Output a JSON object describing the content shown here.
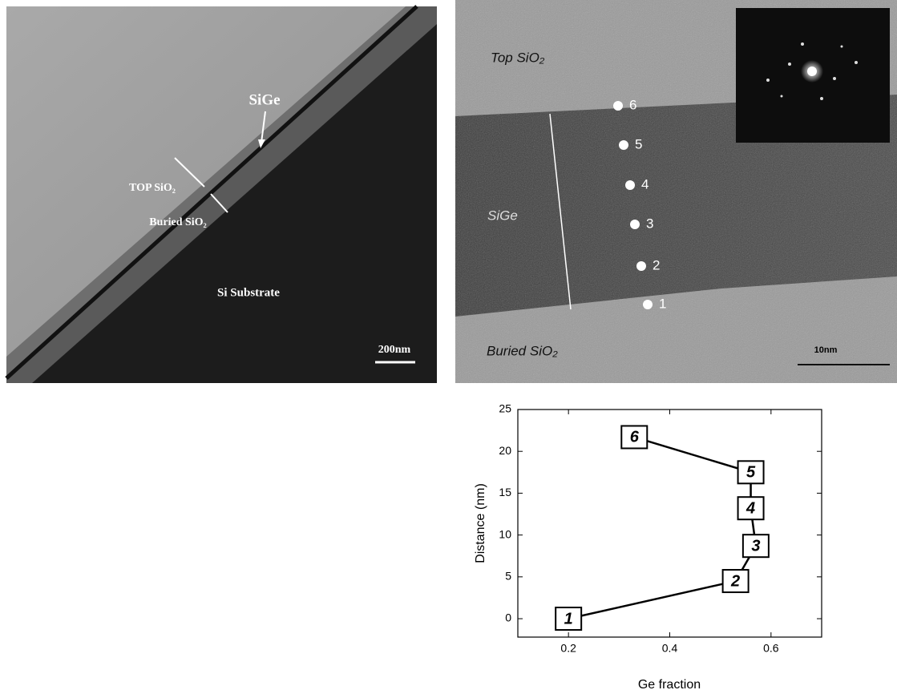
{
  "left_image": {
    "labels": {
      "sige": "SiGe",
      "top_sio2": "TOP SiO₂",
      "buried_sio2": "Buried SiO₂",
      "substrate": "Si Substrate",
      "scale": "200nm"
    }
  },
  "right_image": {
    "labels": {
      "top_sio2": "Top SiO₂",
      "sige": "SiGe",
      "buried_sio2": "Buried SiO₂",
      "scale": "10nm"
    },
    "point_labels": [
      "1",
      "2",
      "3",
      "4",
      "5",
      "6"
    ]
  },
  "chart_data": {
    "type": "line",
    "x_label": "Ge fraction",
    "y_label": "Distance (nm)",
    "x": [
      0.2,
      0.53,
      0.57,
      0.56,
      0.56,
      0.33
    ],
    "values": [
      0,
      4.5,
      8.7,
      13.2,
      17.5,
      21.7
    ],
    "labels": [
      "1",
      "2",
      "3",
      "4",
      "5",
      "6"
    ],
    "color": "#000000",
    "xlim": [
      0.1,
      0.7
    ],
    "ylim": [
      -2.2,
      25
    ],
    "xticks": [
      0.2,
      0.4,
      0.6
    ],
    "yticks": [
      0,
      5,
      10,
      15,
      20,
      25
    ]
  }
}
